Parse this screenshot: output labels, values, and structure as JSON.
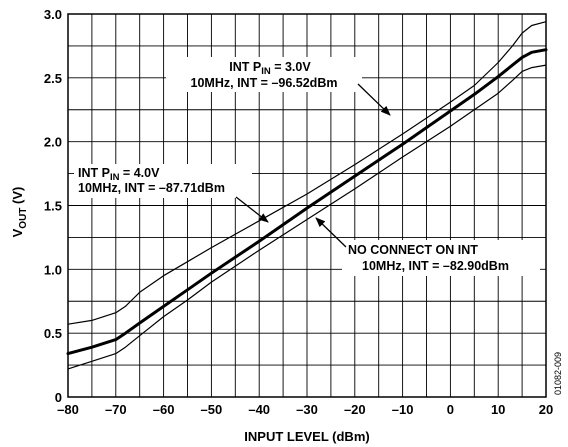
{
  "chart_data": {
    "type": "line",
    "xlabel": "INPUT LEVEL (dBm)",
    "ylabel": {
      "main": "V",
      "sub": "OUT",
      "unit": " (V)"
    },
    "xlim": [
      -80,
      20
    ],
    "ylim": [
      0,
      3.0
    ],
    "xticks": [
      -80,
      -70,
      -60,
      -50,
      -40,
      -30,
      -20,
      -10,
      0,
      10,
      20
    ],
    "xtick_labels": [
      "–80",
      "–70",
      "–60",
      "–50",
      "–40",
      "–30",
      "–20",
      "–10",
      "0",
      "10",
      "20"
    ],
    "yticks": [
      0,
      0.5,
      1.0,
      1.5,
      2.0,
      2.5,
      3.0
    ],
    "ytick_labels": [
      "0",
      "0.5",
      "1.0",
      "1.5",
      "2.0",
      "2.5",
      "3.0"
    ],
    "x_minor_step": 5,
    "y_minor_step": 0.25,
    "grid": true,
    "series": [
      {
        "width": 1.2,
        "x": [
          -80,
          -75,
          -70,
          -68,
          -65,
          -60,
          -55,
          -50,
          -40,
          -30,
          -20,
          -10,
          0,
          5,
          10,
          13,
          15,
          17,
          20
        ],
        "y": [
          0.57,
          0.6,
          0.66,
          0.71,
          0.82,
          0.95,
          1.06,
          1.17,
          1.38,
          1.59,
          1.82,
          2.06,
          2.31,
          2.44,
          2.62,
          2.75,
          2.85,
          2.91,
          2.94
        ]
      },
      {
        "width": 3.0,
        "x": [
          -80,
          -75,
          -70,
          -68,
          -65,
          -60,
          -55,
          -50,
          -40,
          -30,
          -20,
          -10,
          0,
          5,
          10,
          13,
          15,
          17,
          20
        ],
        "y": [
          0.34,
          0.39,
          0.45,
          0.5,
          0.58,
          0.71,
          0.84,
          0.97,
          1.22,
          1.48,
          1.73,
          1.98,
          2.24,
          2.37,
          2.51,
          2.6,
          2.66,
          2.7,
          2.72
        ]
      },
      {
        "width": 1.2,
        "x": [
          -80,
          -75,
          -70,
          -68,
          -65,
          -60,
          -55,
          -50,
          -40,
          -30,
          -20,
          -10,
          0,
          5,
          10,
          13,
          15,
          17,
          20
        ],
        "y": [
          0.22,
          0.28,
          0.34,
          0.39,
          0.48,
          0.63,
          0.76,
          0.9,
          1.15,
          1.39,
          1.63,
          1.88,
          2.12,
          2.25,
          2.38,
          2.48,
          2.55,
          2.58,
          2.6
        ]
      }
    ],
    "annotations": [
      {
        "line1_pre": "INT P",
        "line1_sub": "IN",
        "line1_post": " = 3.0V",
        "line2": "10MHz, INT = –96.52dBm",
        "arrow_to": [
          -13,
          2.41
        ]
      },
      {
        "line1_pre": "INT P",
        "line1_sub": "IN",
        "line1_post": " = 4.0V",
        "line2": "10MHz, INT = –87.71dBm",
        "arrow_to": [
          -43,
          1.28
        ]
      },
      {
        "line1": "NO CONNECT ON INT",
        "line2": "10MHz, INT = –82.90dBm",
        "arrow_to": [
          -35,
          1.41
        ]
      }
    ],
    "figure_code": "01082-009"
  }
}
